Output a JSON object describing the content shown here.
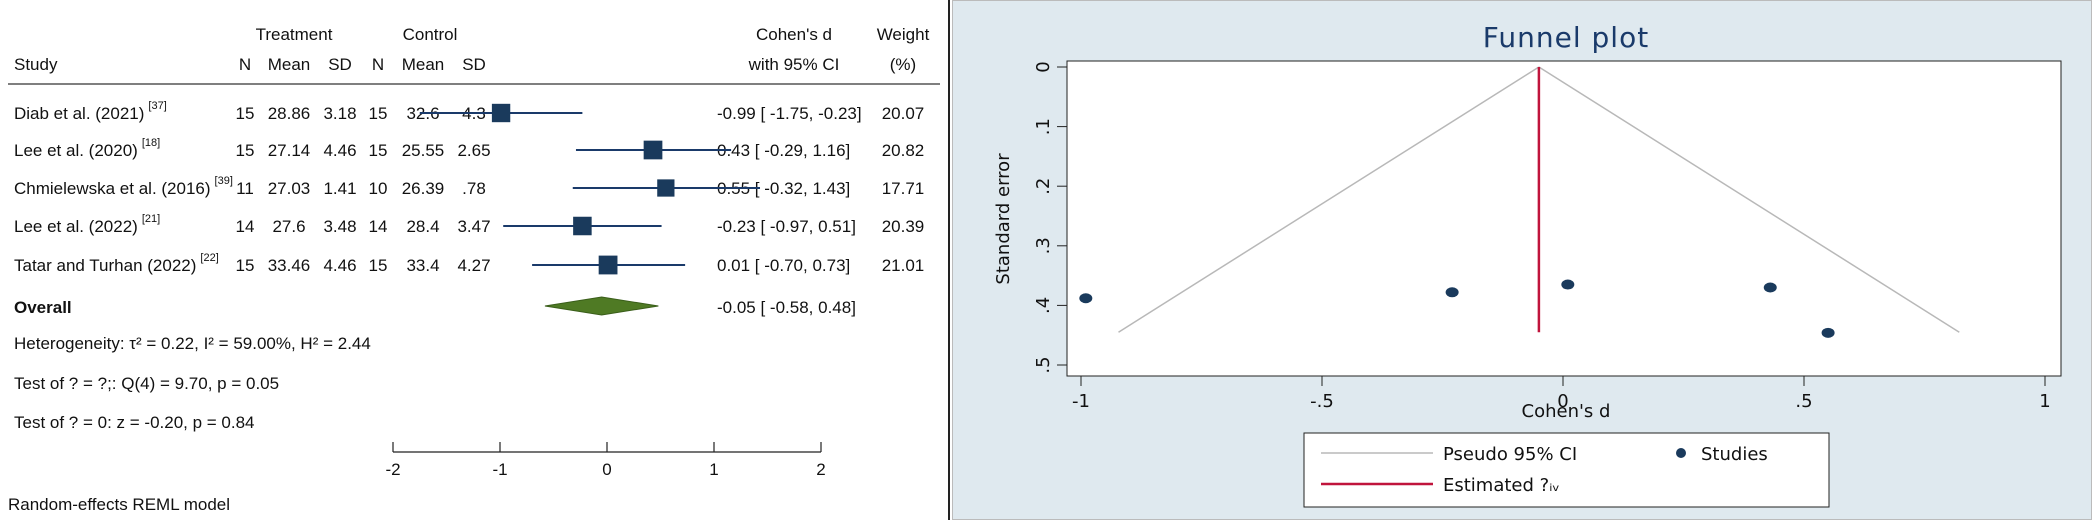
{
  "forest": {
    "headers": {
      "treatment": "Treatment",
      "control": "Control",
      "cohens_d": "Cohen's d",
      "with_ci": "with 95% CI",
      "weight": "Weight",
      "weight_unit": "(%)",
      "study": "Study",
      "n": "N",
      "mean": "Mean",
      "sd": "SD"
    },
    "studies": [
      {
        "name": "Diab et al. (2021)",
        "ref": "[37]",
        "t_n": "15",
        "t_mean": "28.86",
        "t_sd": "3.18",
        "c_n": "15",
        "c_mean": "32.6",
        "c_sd": "4.3",
        "ci_text": "-0.99 [ -1.75, -0.23]",
        "weight": "20.07",
        "d": -0.99,
        "lo": -1.75,
        "hi": -0.23,
        "w": 20.07
      },
      {
        "name": "Lee et al. (2020)",
        "ref": "[18]",
        "t_n": "15",
        "t_mean": "27.14",
        "t_sd": "4.46",
        "c_n": "15",
        "c_mean": "25.55",
        "c_sd": "2.65",
        "ci_text": "0.43 [ -0.29, 1.16]",
        "weight": "20.82",
        "d": 0.43,
        "lo": -0.29,
        "hi": 1.16,
        "w": 20.82
      },
      {
        "name": "Chmielewska et al. (2016)",
        "ref": "[39]",
        "t_n": "11",
        "t_mean": "27.03",
        "t_sd": "1.41",
        "c_n": "10",
        "c_mean": "26.39",
        "c_sd": ".78",
        "ci_text": "0.55 [ -0.32, 1.43]",
        "weight": "17.71",
        "d": 0.55,
        "lo": -0.32,
        "hi": 1.43,
        "w": 17.71
      },
      {
        "name": "Lee et al. (2022)",
        "ref": "[21]",
        "t_n": "14",
        "t_mean": "27.6",
        "t_sd": "3.48",
        "c_n": "14",
        "c_mean": "28.4",
        "c_sd": "3.47",
        "ci_text": "-0.23 [ -0.97, 0.51]",
        "weight": "20.39",
        "d": -0.23,
        "lo": -0.97,
        "hi": 0.51,
        "w": 20.39
      },
      {
        "name": "Tatar and Turhan (2022)",
        "ref": "[22]",
        "t_n": "15",
        "t_mean": "33.46",
        "t_sd": "4.46",
        "c_n": "15",
        "c_mean": "33.4",
        "c_sd": "4.27",
        "ci_text": "0.01 [ -0.70, 0.73]",
        "weight": "21.01",
        "d": 0.01,
        "lo": -0.7,
        "hi": 0.73,
        "w": 21.01
      }
    ],
    "overall": {
      "label": "Overall",
      "ci_text": "-0.05 [ -0.58, 0.48]",
      "d": -0.05,
      "lo": -0.58,
      "hi": 0.48
    },
    "heterogeneity": "Heterogeneity: τ² = 0.22, I² = 59.00%, H² = 2.44",
    "test1": "Test of ? = ?;: Q(4) = 9.70, p = 0.05",
    "test2": "Test of ? = 0: z = -0.20, p = 0.84",
    "model": "Random-effects REML model",
    "axis_ticks": [
      "-2",
      "-1",
      "0",
      "1",
      "2"
    ]
  },
  "chart_data": {
    "type": "scatter",
    "title": "Funnel plot",
    "xlabel": "Cohen's d",
    "ylabel": "Standard error",
    "xlim": [
      -1,
      1
    ],
    "ylim": [
      0.5,
      0
    ],
    "x_ticks": [
      "-1",
      "-.5",
      "0",
      ".5",
      "1"
    ],
    "y_ticks": [
      "0",
      ".1",
      ".2",
      ".3",
      ".4",
      ".5"
    ],
    "estimate": -0.05,
    "points": [
      {
        "x": -0.99,
        "y": 0.388
      },
      {
        "x": -0.23,
        "y": 0.378
      },
      {
        "x": 0.01,
        "y": 0.365
      },
      {
        "x": 0.43,
        "y": 0.37
      },
      {
        "x": 0.55,
        "y": 0.446
      }
    ],
    "legend": {
      "ci": "Pseudo 95% CI",
      "studies": "Studies",
      "estimated": "Estimated ?ᵢᵥ"
    },
    "colors": {
      "point": "#1a3a5c",
      "estimate_line": "#c0143c",
      "ci_line": "#b8b8b8",
      "title": "#1a3a6a",
      "background": "#dfe9ef",
      "plot_area": "#ffffff"
    }
  }
}
